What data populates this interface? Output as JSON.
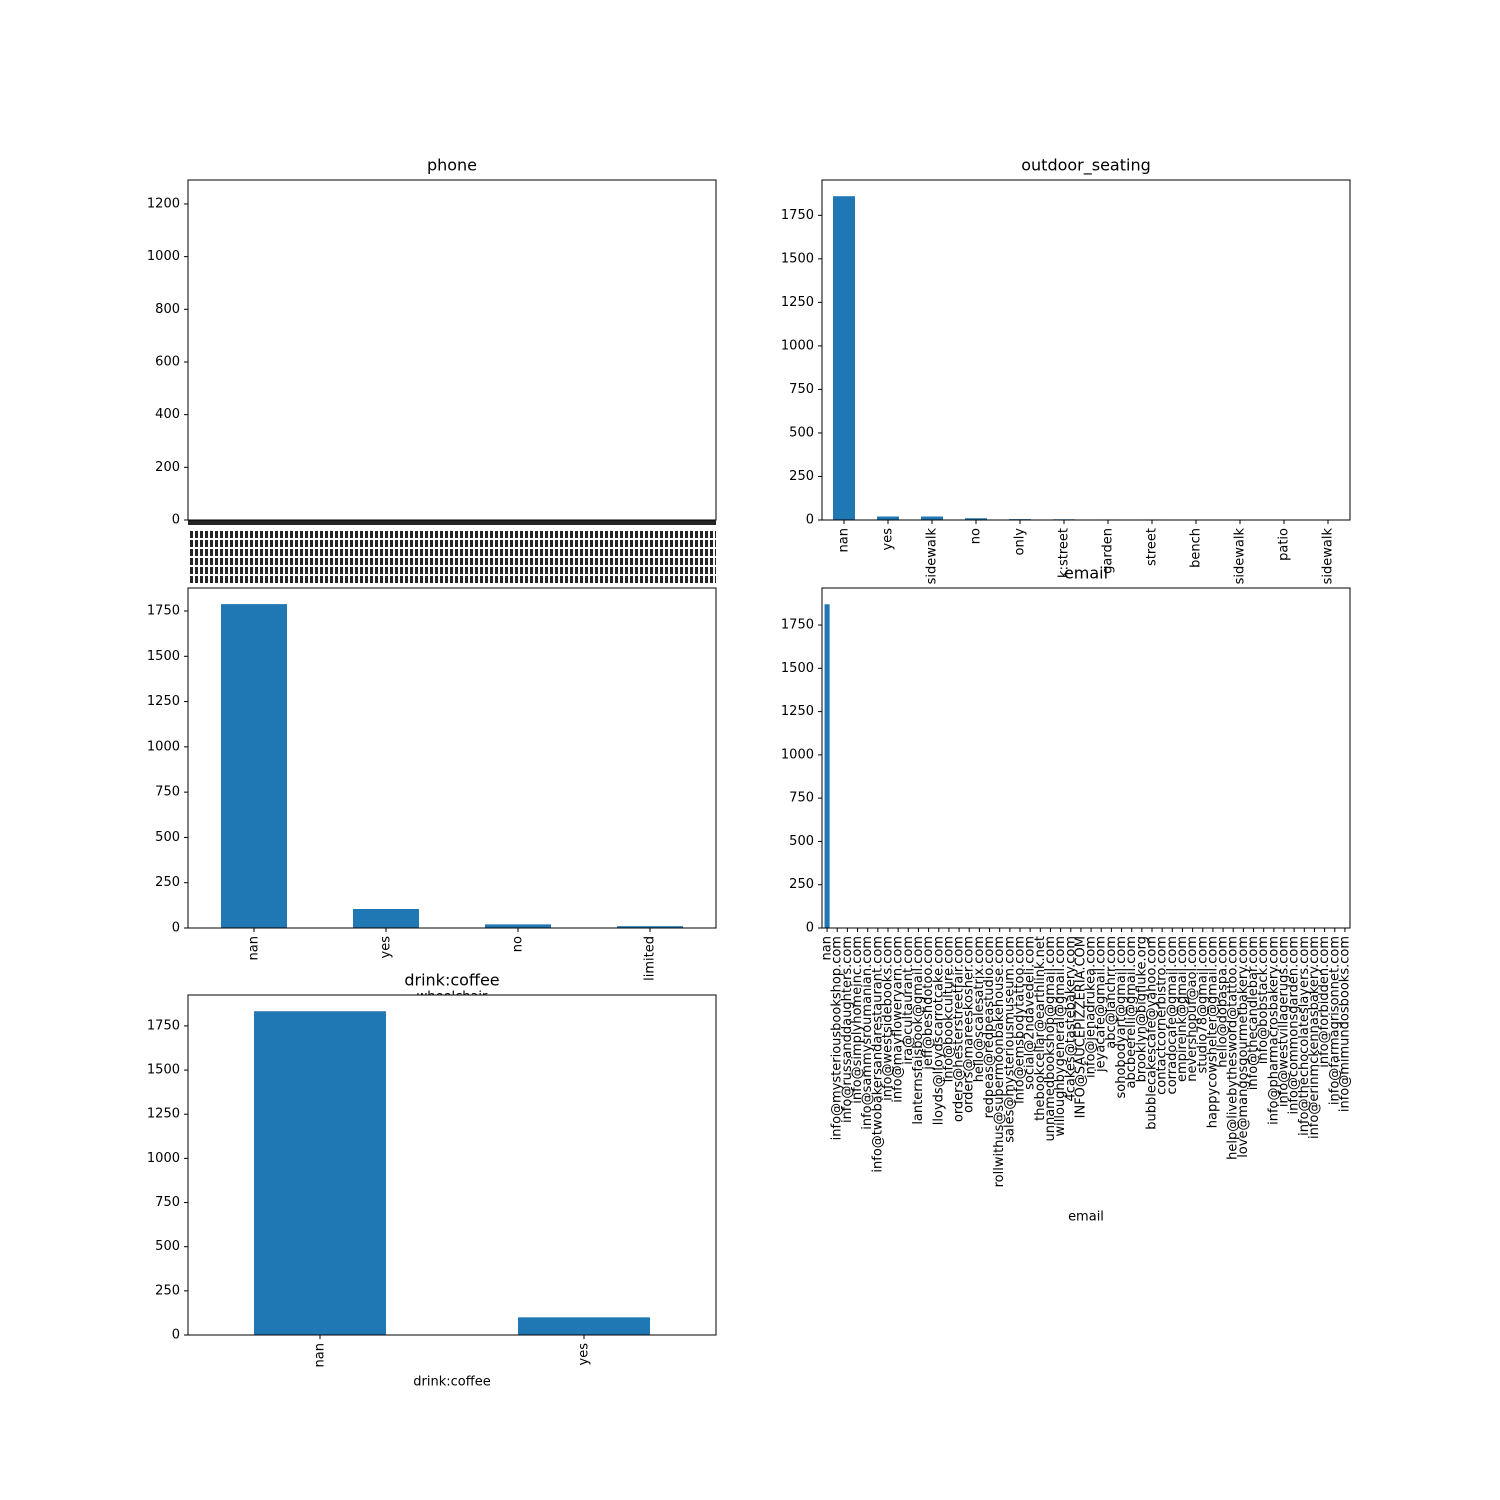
{
  "chart_data": [
    {
      "type": "bar",
      "title": "phone",
      "color": "#1f77b4",
      "ylim": [
        0,
        1291
      ],
      "yticks": [
        0,
        200,
        400,
        600,
        800,
        1000,
        1200
      ]
    },
    {
      "type": "bar",
      "title": "outdoor_seating",
      "color": "#1f77b4",
      "categories": [
        "nan",
        "yes",
        "sidewalk",
        "no",
        "only",
        "k:street",
        "garden",
        "street",
        "bench",
        "sidewalk",
        "patio",
        "sidewalk"
      ],
      "values": [
        1860,
        20,
        20,
        10,
        5,
        4,
        3,
        3,
        1,
        1,
        1,
        1
      ],
      "ylim": [
        0,
        1953
      ],
      "yticks": [
        0,
        250,
        500,
        750,
        1000,
        1250,
        1500,
        1750
      ]
    },
    {
      "type": "bar",
      "xlabel": "wheelchair",
      "color": "#1f77b4",
      "categories": [
        "nan",
        "yes",
        "no",
        "limited"
      ],
      "values": [
        1788,
        105,
        20,
        10
      ],
      "ylim": [
        0,
        1877
      ],
      "yticks": [
        0,
        250,
        500,
        750,
        1000,
        1250,
        1500,
        1750
      ]
    },
    {
      "type": "bar",
      "title": "email",
      "xlabel": "email",
      "color": "#1f77b4",
      "categories": [
        "nan",
        "info@mysteriousbookshop.com",
        "info@russanddaughters.com",
        "info@simplyhomeinc.com",
        "info@sammysroumanian.com",
        "info@twobakersandarestaurant.com",
        "info@westsidebooks.com",
        "info@mayfloweryarn.com",
        "ira@cultaurant.com",
        "lanternsfaisbook@gmail.com",
        "jeff@beshdotoo.com",
        "lloyds@lloydscarrotcake.com",
        "info@bookculture.com",
        "orders@hesterstreetfair.com",
        "orders@mareeskosher.com",
        "hello@scalesatrix.com",
        "redpeas@redpeastudio.com",
        "rollwithus@supermoonbakehouse.com",
        "sales@mysteriousmuseum.com",
        "info@emsbodytattoo.com",
        "social@2ndavedeli.com",
        "thebookcellar@earthlink.net",
        "unnamedbookshop@gmail.com",
        "willoughbygeneral@gmail.com",
        "4cakes@tastebakery.com",
        "INFO@SAUCEPIZZERIA.COM",
        "info@jenadrukea.com",
        "jeyacafe@gmail.com",
        "abc@lanchrr.com",
        "sohobodyart@gmail.com",
        "abcbeerelli@gmail.com",
        "brooklyn@bigfluke.org",
        "bubblecakescafe@yahoo.com",
        "contactcornerbistro.com",
        "corradocafe@gmail.com",
        "empireink@gmail.com",
        "nevershopuf@aol.com",
        "studio78@gmail.com",
        "happycowshelter@gmail.com",
        "hello@dobaspa.com",
        "help@livebythesword@tattoo.com",
        "love@mangosgourmetbakery.com",
        "info@thecandlebar.com",
        "info@bobstack.com",
        "info@pharmacrosbakery.com",
        "info@westvillagerugs.com",
        "info@commonsgarden.com",
        "info@thechocolateslayers.com",
        "info@erinmckennasbakery.com",
        "info@forbidden.com",
        "info@farmagrisonnet.com",
        "info@mimundosbooks.com"
      ],
      "values": [
        1870,
        1,
        1,
        1,
        1,
        1,
        1,
        1,
        1,
        1,
        1,
        1,
        1,
        1,
        1,
        1,
        1,
        1,
        1,
        1,
        1,
        1,
        1,
        1,
        1,
        1,
        1,
        1,
        1,
        1,
        1,
        1,
        1,
        1,
        1,
        1,
        1,
        1,
        1,
        1,
        1,
        1,
        1,
        1,
        1,
        1,
        1,
        1,
        1,
        1,
        1,
        1
      ],
      "ylim": [
        0,
        1964
      ],
      "yticks": [
        0,
        250,
        500,
        750,
        1000,
        1250,
        1500,
        1750
      ]
    },
    {
      "type": "bar",
      "title": "drink:coffee",
      "xlabel": "drink:coffee",
      "color": "#1f77b4",
      "categories": [
        "nan",
        "yes"
      ],
      "values": [
        1833,
        100
      ],
      "ylim": [
        0,
        1925
      ],
      "yticks": [
        0,
        250,
        500,
        750,
        1000,
        1250,
        1500,
        1750
      ]
    }
  ]
}
